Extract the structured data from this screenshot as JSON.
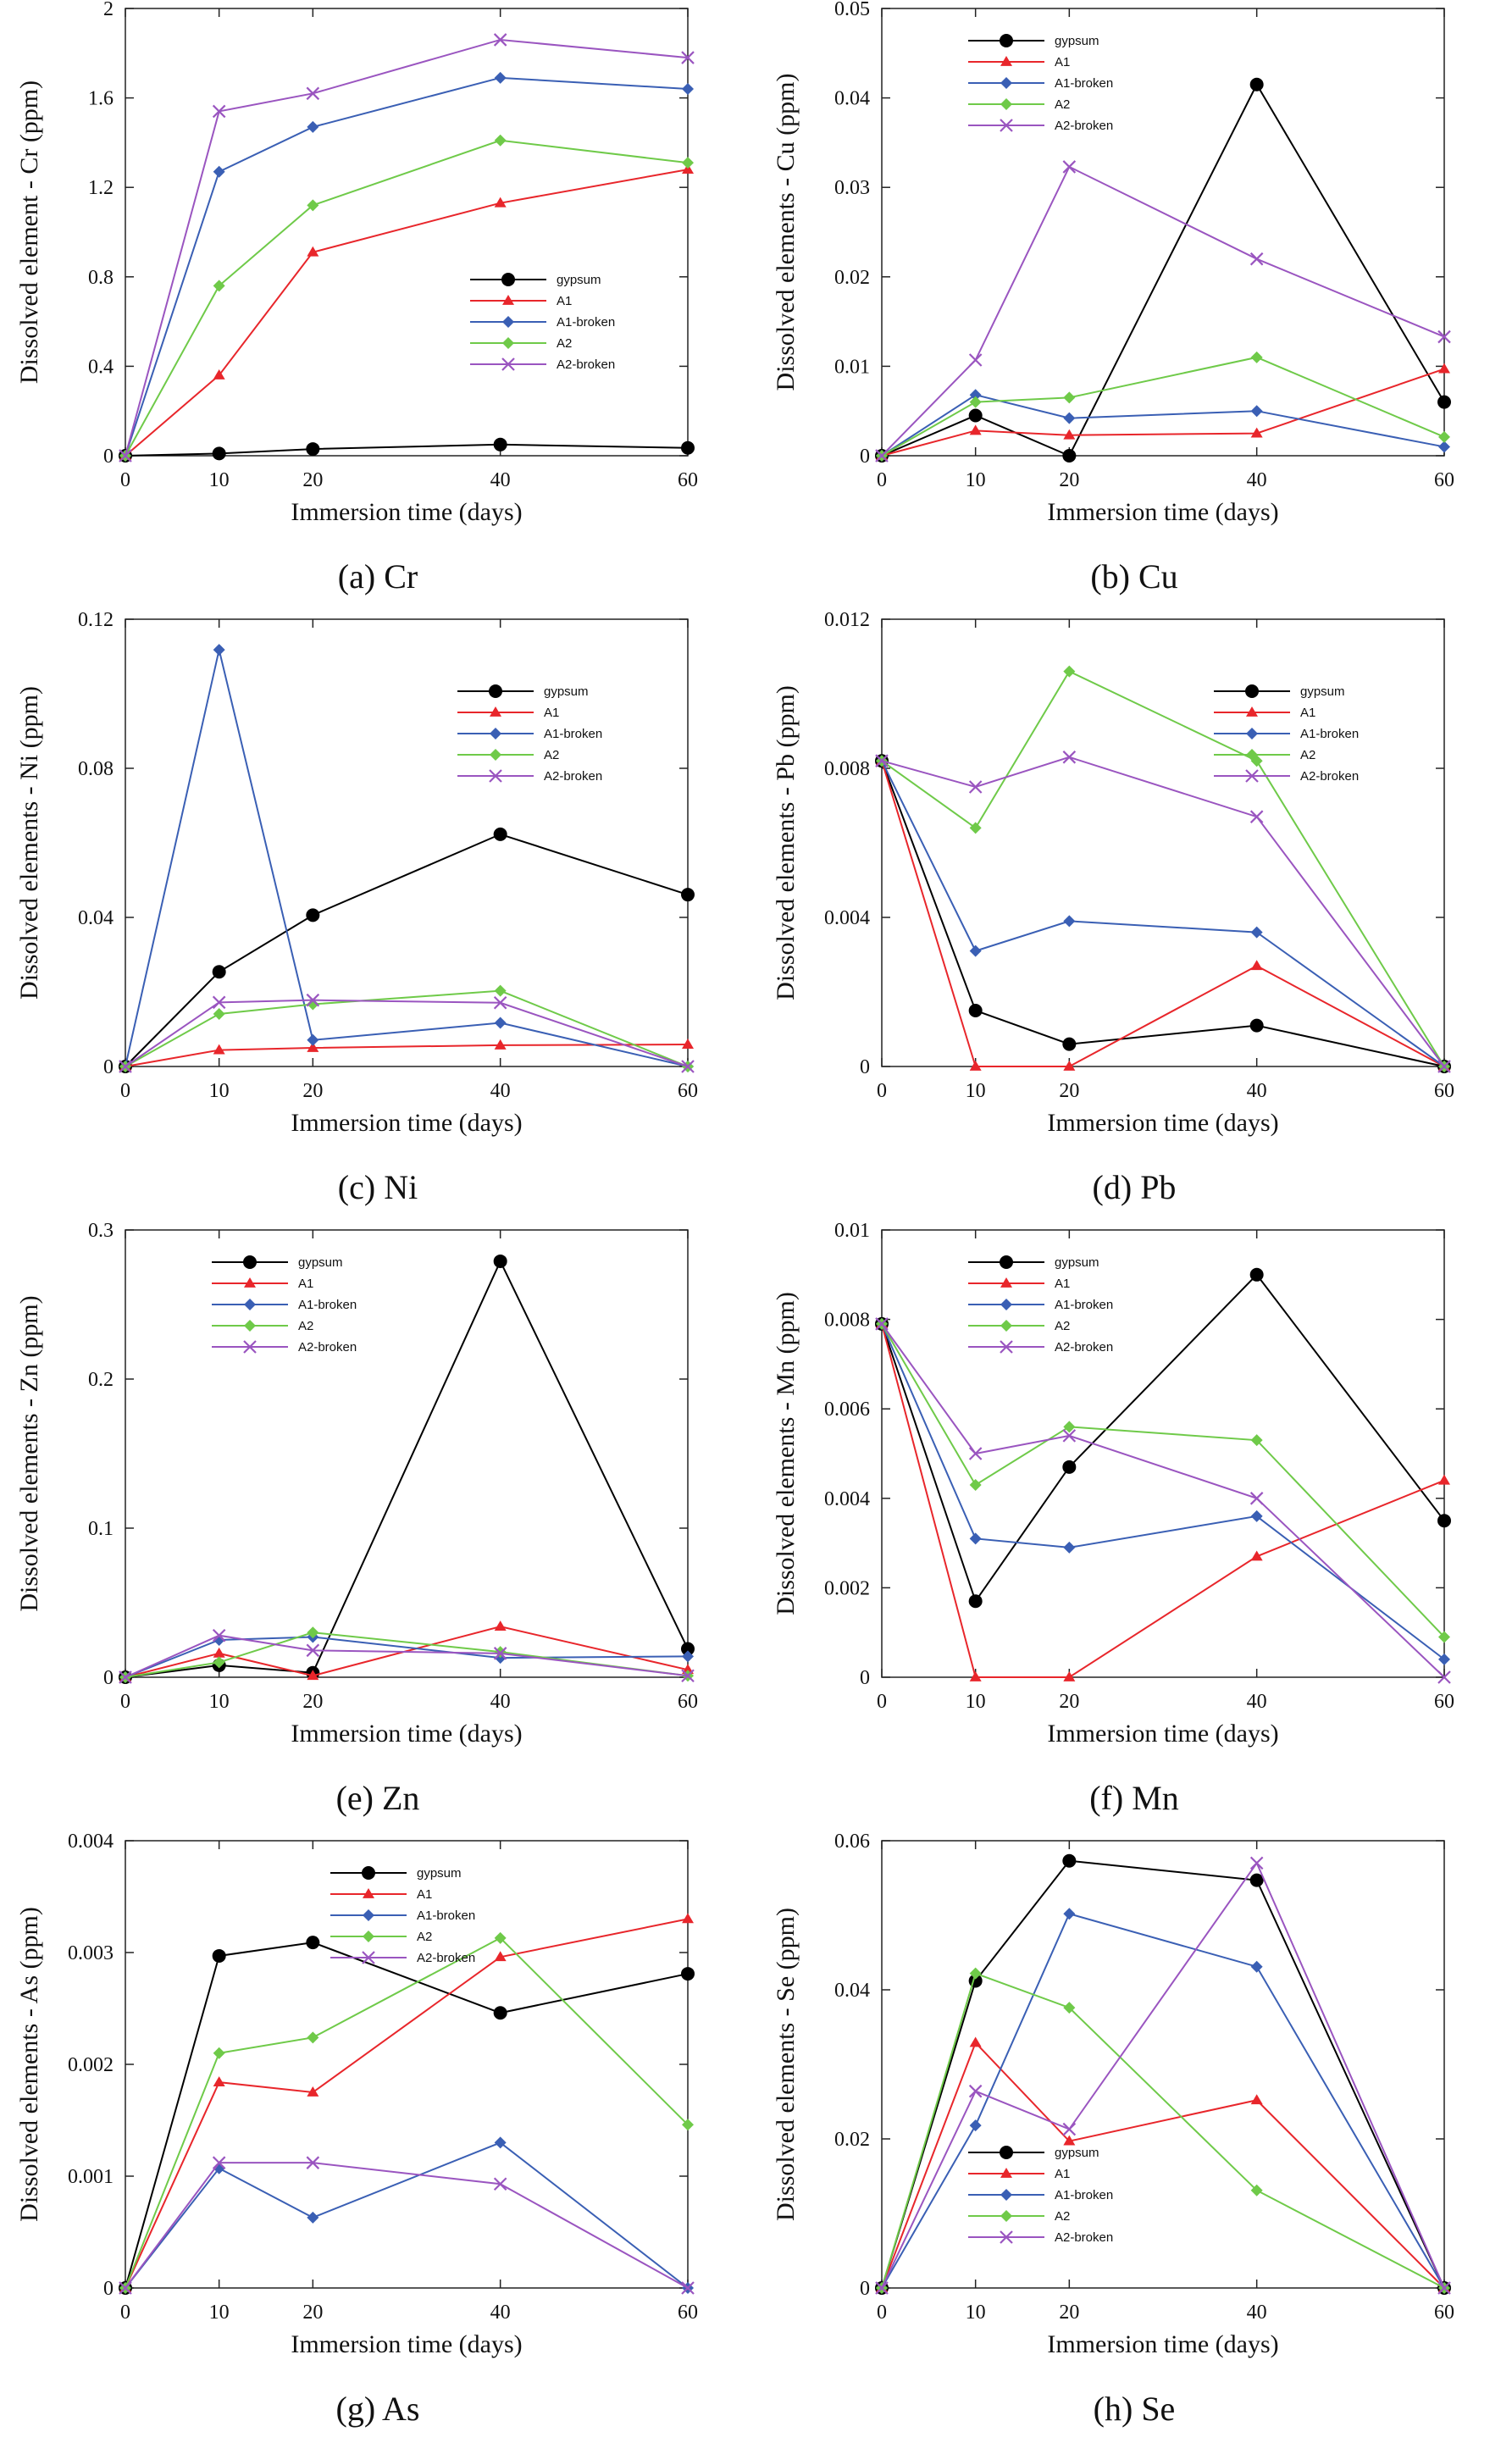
{
  "chart_data": [
    {
      "type": "line",
      "caption": "(a) Cr",
      "xlabel": "Immersion time (days)",
      "ylabel": "Dissolved element - Cr (ppm)",
      "x": [
        0,
        10,
        20,
        40,
        60
      ],
      "xlim": [
        0,
        60
      ],
      "xticks": [
        "0",
        "10",
        "20",
        "40",
        "60"
      ],
      "ylim": [
        0,
        2
      ],
      "yticks": [
        "0",
        "0.4",
        "0.8",
        "1.2",
        "1.6",
        "2"
      ],
      "legend_position": "middle-right",
      "series": [
        {
          "name": "gypsum",
          "values": [
            0,
            0.01,
            0.03,
            0.05,
            0.035
          ]
        },
        {
          "name": "A1",
          "values": [
            0,
            0.36,
            0.91,
            1.13,
            1.28
          ]
        },
        {
          "name": "A1-broken",
          "values": [
            0,
            1.27,
            1.47,
            1.69,
            1.64
          ]
        },
        {
          "name": "A2",
          "values": [
            0,
            0.76,
            1.12,
            1.41,
            1.31
          ]
        },
        {
          "name": "A2-broken",
          "values": [
            0,
            1.54,
            1.62,
            1.86,
            1.78
          ]
        }
      ]
    },
    {
      "type": "line",
      "caption": "(b) Cu",
      "xlabel": "Immersion time (days)",
      "ylabel": "Dissolved elements - Cu (ppm)",
      "x": [
        0,
        10,
        20,
        40,
        60
      ],
      "xlim": [
        0,
        60
      ],
      "xticks": [
        "0",
        "10",
        "20",
        "40",
        "60"
      ],
      "ylim": [
        0,
        0.05
      ],
      "yticks": [
        "0",
        "0.01",
        "0.02",
        "0.03",
        "0.04",
        "0.05"
      ],
      "legend_position": "top-left",
      "series": [
        {
          "name": "gypsum",
          "values": [
            0,
            0.0045,
            0,
            0.0415,
            0.006
          ]
        },
        {
          "name": "A1",
          "values": [
            0,
            0.0028,
            0.0023,
            0.0025,
            0.0097
          ]
        },
        {
          "name": "A1-broken",
          "values": [
            0,
            0.0068,
            0.0042,
            0.005,
            0.001
          ]
        },
        {
          "name": "A2",
          "values": [
            0,
            0.006,
            0.0065,
            0.011,
            0.0021
          ]
        },
        {
          "name": "A2-broken",
          "values": [
            0,
            0.0107,
            0.0323,
            0.022,
            0.0133
          ]
        }
      ]
    },
    {
      "type": "line",
      "caption": "(c) Ni",
      "xlabel": "Immersion time (days)",
      "ylabel": "Dissolved elements - Ni (ppm)",
      "x": [
        0,
        10,
        20,
        40,
        60
      ],
      "xlim": [
        0,
        60
      ],
      "xticks": [
        "0",
        "10",
        "20",
        "40",
        "60"
      ],
      "ylim": [
        0,
        0.12
      ],
      "yticks": [
        "0",
        "0.04",
        "0.08",
        "0.12"
      ],
      "legend_position": "top-right",
      "series": [
        {
          "name": "gypsum",
          "values": [
            0,
            0.0254,
            0.0406,
            0.0623,
            0.0461
          ]
        },
        {
          "name": "A1",
          "values": [
            0,
            0.0044,
            0.005,
            0.0057,
            0.0059
          ]
        },
        {
          "name": "A1-broken",
          "values": [
            0,
            0.1118,
            0.0071,
            0.0117,
            0
          ]
        },
        {
          "name": "A2",
          "values": [
            0,
            0.0141,
            0.0167,
            0.0203,
            0
          ]
        },
        {
          "name": "A2-broken",
          "values": [
            0,
            0.0172,
            0.0178,
            0.0171,
            0
          ]
        }
      ]
    },
    {
      "type": "line",
      "caption": "(d) Pb",
      "xlabel": "Immersion time (days)",
      "ylabel": "Dissolved elements - Pb (ppm)",
      "x": [
        0,
        10,
        20,
        40,
        60
      ],
      "xlim": [
        0,
        60
      ],
      "xticks": [
        "0",
        "10",
        "20",
        "40",
        "60"
      ],
      "ylim": [
        0,
        0.012
      ],
      "yticks": [
        "0",
        "0.004",
        "0.008",
        "0.012"
      ],
      "legend_position": "top-right",
      "series": [
        {
          "name": "gypsum",
          "values": [
            0.0082,
            0.0015,
            0.0006,
            0.0011,
            0
          ]
        },
        {
          "name": "A1",
          "values": [
            0.0082,
            0,
            0,
            0.0027,
            0
          ]
        },
        {
          "name": "A1-broken",
          "values": [
            0.0082,
            0.0031,
            0.0039,
            0.0036,
            0
          ]
        },
        {
          "name": "A2",
          "values": [
            0.0082,
            0.0064,
            0.0106,
            0.0082,
            0
          ]
        },
        {
          "name": "A2-broken",
          "values": [
            0.0082,
            0.0075,
            0.0083,
            0.0067,
            0
          ]
        }
      ]
    },
    {
      "type": "line",
      "caption": "(e) Zn",
      "xlabel": "Immersion time (days)",
      "ylabel": "Dissolved elements - Zn (ppm)",
      "x": [
        0,
        10,
        20,
        40,
        60
      ],
      "xlim": [
        0,
        60
      ],
      "xticks": [
        "0",
        "10",
        "20",
        "40",
        "60"
      ],
      "ylim": [
        0,
        0.3
      ],
      "yticks": [
        "0",
        "0.1",
        "0.2",
        "0.3"
      ],
      "legend_position": "top-left",
      "series": [
        {
          "name": "gypsum",
          "values": [
            0,
            0.008,
            0.003,
            0.279,
            0.019
          ]
        },
        {
          "name": "A1",
          "values": [
            0,
            0.016,
            0.001,
            0.034,
            0.005
          ]
        },
        {
          "name": "A1-broken",
          "values": [
            0,
            0.025,
            0.027,
            0.013,
            0.014
          ]
        },
        {
          "name": "A2",
          "values": [
            0,
            0.01,
            0.03,
            0.017,
            0.001
          ]
        },
        {
          "name": "A2-broken",
          "values": [
            0,
            0.028,
            0.018,
            0.016,
            0.001
          ]
        }
      ]
    },
    {
      "type": "line",
      "caption": "(f) Mn",
      "xlabel": "Immersion time (days)",
      "ylabel": "Dissolved elements - Mn (ppm)",
      "x": [
        0,
        10,
        20,
        40,
        60
      ],
      "xlim": [
        0,
        60
      ],
      "xticks": [
        "0",
        "10",
        "20",
        "40",
        "60"
      ],
      "ylim": [
        0,
        0.01
      ],
      "yticks": [
        "0",
        "0.002",
        "0.004",
        "0.006",
        "0.008",
        "0.01"
      ],
      "legend_position": "top-left",
      "series": [
        {
          "name": "gypsum",
          "values": [
            0.0079,
            0.0017,
            0.0047,
            0.009,
            0.0035
          ]
        },
        {
          "name": "A1",
          "values": [
            0.0079,
            0,
            0,
            0.0027,
            0.0044
          ]
        },
        {
          "name": "A1-broken",
          "values": [
            0.0079,
            0.0031,
            0.0029,
            0.0036,
            0.0004
          ]
        },
        {
          "name": "A2",
          "values": [
            0.0079,
            0.0043,
            0.0056,
            0.0053,
            0.0009
          ]
        },
        {
          "name": "A2-broken",
          "values": [
            0.0079,
            0.005,
            0.0054,
            0.004,
            0
          ]
        }
      ]
    },
    {
      "type": "line",
      "caption": "(g) As",
      "xlabel": "Immersion time (days)",
      "ylabel": "Dissolved elements - As (ppm)",
      "x": [
        0,
        10,
        20,
        40,
        60
      ],
      "xlim": [
        0,
        60
      ],
      "xticks": [
        "0",
        "10",
        "20",
        "40",
        "60"
      ],
      "ylim": [
        0,
        0.004
      ],
      "yticks": [
        "0",
        "0.001",
        "0.002",
        "0.003",
        "0.004"
      ],
      "legend_position": "top-center",
      "series": [
        {
          "name": "gypsum",
          "values": [
            0,
            0.00297,
            0.00309,
            0.00246,
            0.00281
          ]
        },
        {
          "name": "A1",
          "values": [
            0,
            0.00184,
            0.00175,
            0.00296,
            0.0033
          ]
        },
        {
          "name": "A1-broken",
          "values": [
            0,
            0.00107,
            0.00063,
            0.0013,
            0
          ]
        },
        {
          "name": "A2",
          "values": [
            0,
            0.0021,
            0.00224,
            0.00313,
            0.00146
          ]
        },
        {
          "name": "A2-broken",
          "values": [
            0,
            0.00112,
            0.00112,
            0.00093,
            0
          ]
        }
      ]
    },
    {
      "type": "line",
      "caption": "(h) Se",
      "xlabel": "Immersion time (days)",
      "ylabel": "Dissolved elements - Se (ppm)",
      "x": [
        0,
        10,
        20,
        40,
        60
      ],
      "xlim": [
        0,
        60
      ],
      "xticks": [
        "0",
        "10",
        "20",
        "40",
        "60"
      ],
      "ylim": [
        0,
        0.06
      ],
      "yticks": [
        "0",
        "0.02",
        "0.04",
        "0.06"
      ],
      "legend_position": "bottom-left",
      "series": [
        {
          "name": "gypsum",
          "values": [
            0,
            0.0412,
            0.0573,
            0.0547,
            0
          ]
        },
        {
          "name": "A1",
          "values": [
            0,
            0.0329,
            0.0197,
            0.0252,
            0
          ]
        },
        {
          "name": "A1-broken",
          "values": [
            0,
            0.0218,
            0.0502,
            0.0431,
            0
          ]
        },
        {
          "name": "A2",
          "values": [
            0,
            0.0422,
            0.0376,
            0.0131,
            0
          ]
        },
        {
          "name": "A2-broken",
          "values": [
            0,
            0.0264,
            0.0213,
            0.057,
            0
          ]
        }
      ]
    }
  ],
  "series_style": {
    "gypsum": {
      "color": "#000000",
      "marker": "circle"
    },
    "A1": {
      "color": "#e8262b",
      "marker": "triangle"
    },
    "A1-broken": {
      "color": "#3a5fb4",
      "marker": "diamond"
    },
    "A2": {
      "color": "#6fca49",
      "marker": "diamond"
    },
    "A2-broken": {
      "color": "#9a55c0",
      "marker": "x"
    }
  }
}
